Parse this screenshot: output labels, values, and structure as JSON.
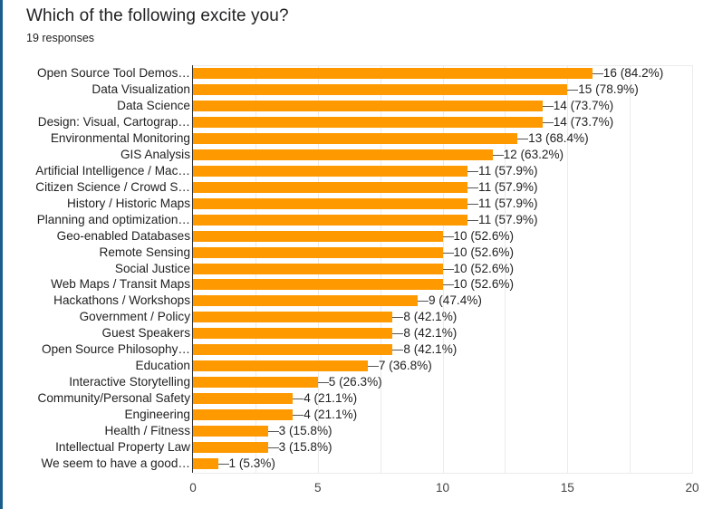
{
  "header": {
    "title": "Which of the following excite you?",
    "subtitle": "19 responses"
  },
  "colors": {
    "bar": "#ff9900",
    "accent_border": "#1a5f8c",
    "gridline": "#ebebeb"
  },
  "chart_data": {
    "type": "bar",
    "orientation": "horizontal",
    "title": "Which of the following excite you?",
    "subtitle": "19 responses",
    "xlabel": "",
    "ylabel": "",
    "xlim": [
      0,
      20
    ],
    "x_ticks": [
      "0",
      "5",
      "10",
      "15",
      "20"
    ],
    "grid": true,
    "legend": "none",
    "categories": [
      "Open Source Tool Demos…",
      "Data Visualization",
      "Data Science",
      "Design: Visual, Cartograp…",
      "Environmental Monitoring",
      "GIS Analysis",
      "Artificial Intelligence / Mac…",
      "Citizen Science / Crowd S…",
      "History / Historic Maps",
      "Planning and optimization…",
      "Geo-enabled Databases",
      "Remote Sensing",
      "Social Justice",
      "Web Maps / Transit Maps",
      "Hackathons / Workshops",
      "Government / Policy",
      "Guest Speakers",
      "Open Source Philosophy…",
      "Education",
      "Interactive Storytelling",
      "Community/Personal Safety",
      "Engineering",
      "Health / Fitness",
      "Intellectual Property Law",
      "We seem to have a good…"
    ],
    "values": [
      16,
      15,
      14,
      14,
      13,
      12,
      11,
      11,
      11,
      11,
      10,
      10,
      10,
      10,
      9,
      8,
      8,
      8,
      7,
      5,
      4,
      4,
      3,
      3,
      1
    ],
    "value_labels": [
      "16 (84.2%)",
      "15 (78.9%)",
      "14 (73.7%)",
      "14 (73.7%)",
      "13 (68.4%)",
      "12 (63.2%)",
      "11 (57.9%)",
      "11 (57.9%)",
      "11 (57.9%)",
      "11 (57.9%)",
      "10 (52.6%)",
      "10 (52.6%)",
      "10 (52.6%)",
      "10 (52.6%)",
      "9 (47.4%)",
      "8 (42.1%)",
      "8 (42.1%)",
      "8 (42.1%)",
      "7 (36.8%)",
      "5 (26.3%)",
      "4 (21.1%)",
      "4 (21.1%)",
      "3 (15.8%)",
      "3 (15.8%)",
      "1 (5.3%)"
    ]
  }
}
